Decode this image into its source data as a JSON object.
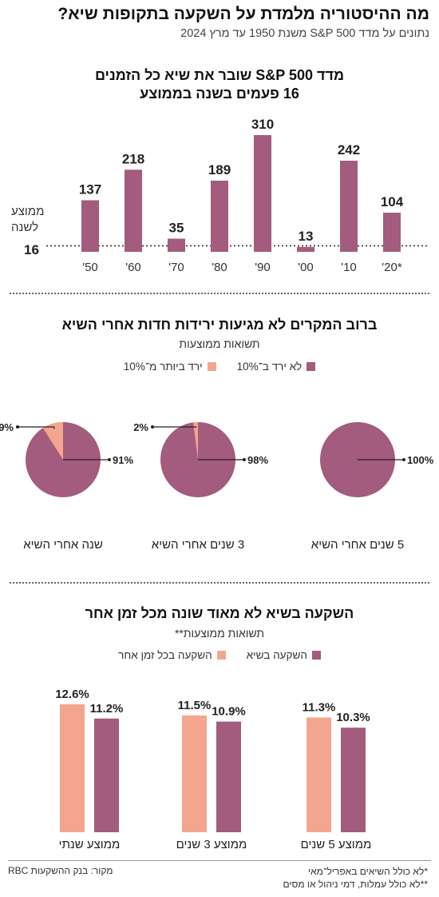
{
  "title": "מה ההיסטוריה מלמדת על השקעה בתקופות שיא?",
  "subtitle": "נתונים על מדד S&P 500 משנת 1950 עד מרץ 2024",
  "colors": {
    "dark": "#a35b7e",
    "light": "#f4a58e",
    "text": "#222222"
  },
  "section1": {
    "title_line1": "מדד S&P 500 שובר את שיא כל הזמנים",
    "title_line2": "16 פעמים בשנה בממוצע",
    "avg_label_line1": "ממוצע",
    "avg_label_line2": "לשנה",
    "avg_value_label": "16"
  },
  "section2": {
    "title": "ברוב המקרים לא מגיעות ירידות חדות אחרי השיא",
    "subtitle": "תשואות ממוצעות",
    "legend": [
      "לא ירד ב־10%",
      "ירד ביותר מ־10%"
    ]
  },
  "section3": {
    "title": "השקעה בשיא לא מאוד שונה מכל זמן אחר",
    "subtitle": "תשואות ממוצעות**",
    "legend": [
      "השקעה בשיא",
      "השקעה בכל זמן אחר"
    ]
  },
  "footnotes": [
    "*לא כולל השיאים באפריל־מאי",
    "**לא כולל עמלות, דמי ניהול או מסים"
  ],
  "source": "מקור: בנק ההשקעות RBC",
  "chart_data": [
    {
      "type": "bar",
      "title": "מדד S&P 500 שובר את שיא כל הזמנים 16 פעמים בשנה בממוצע",
      "categories": [
        "'50",
        "'60",
        "'70",
        "'80",
        "'90",
        "'00",
        "'10",
        "'20*"
      ],
      "values": [
        137,
        218,
        35,
        189,
        310,
        13,
        242,
        104
      ],
      "value_labels": [
        "137",
        "218",
        "35",
        "189",
        "310",
        "13",
        "242",
        "104"
      ],
      "reference_line": {
        "value": 16,
        "label": "16"
      },
      "ylim": [
        0,
        330
      ],
      "color": "#a35b7e"
    },
    {
      "type": "pie",
      "pies": [
        {
          "label": "5 שנים אחרי השיא",
          "slices": [
            {
              "name": "לא ירד ב־10%",
              "value": 100,
              "label": "100%"
            }
          ]
        },
        {
          "label": "3 שנים אחרי השיא",
          "slices": [
            {
              "name": "לא ירד ב־10%",
              "value": 98,
              "label": "98%"
            },
            {
              "name": "ירד ביותר מ־10%",
              "value": 2,
              "label": "2%"
            }
          ]
        },
        {
          "label": "שנה אחרי השיא",
          "slices": [
            {
              "name": "לא ירד ב־10%",
              "value": 91,
              "label": "91%"
            },
            {
              "name": "ירד ביותר מ־10%",
              "value": 9,
              "label": "9%"
            }
          ]
        }
      ]
    },
    {
      "type": "bar",
      "categories": [
        "ממוצע 5 שנים",
        "ממוצע 3 שנים",
        "ממוצע שנתי"
      ],
      "series": [
        {
          "name": "השקעה בשיא",
          "values": [
            10.3,
            10.9,
            11.2
          ],
          "labels": [
            "10.3%",
            "10.9%",
            "11.2%"
          ],
          "color": "#a35b7e"
        },
        {
          "name": "השקעה בכל זמן אחר",
          "values": [
            11.3,
            11.5,
            12.6
          ],
          "labels": [
            "11.3%",
            "11.5%",
            "12.6%"
          ],
          "color": "#f4a58e"
        }
      ],
      "ylim": [
        0,
        13
      ]
    }
  ]
}
